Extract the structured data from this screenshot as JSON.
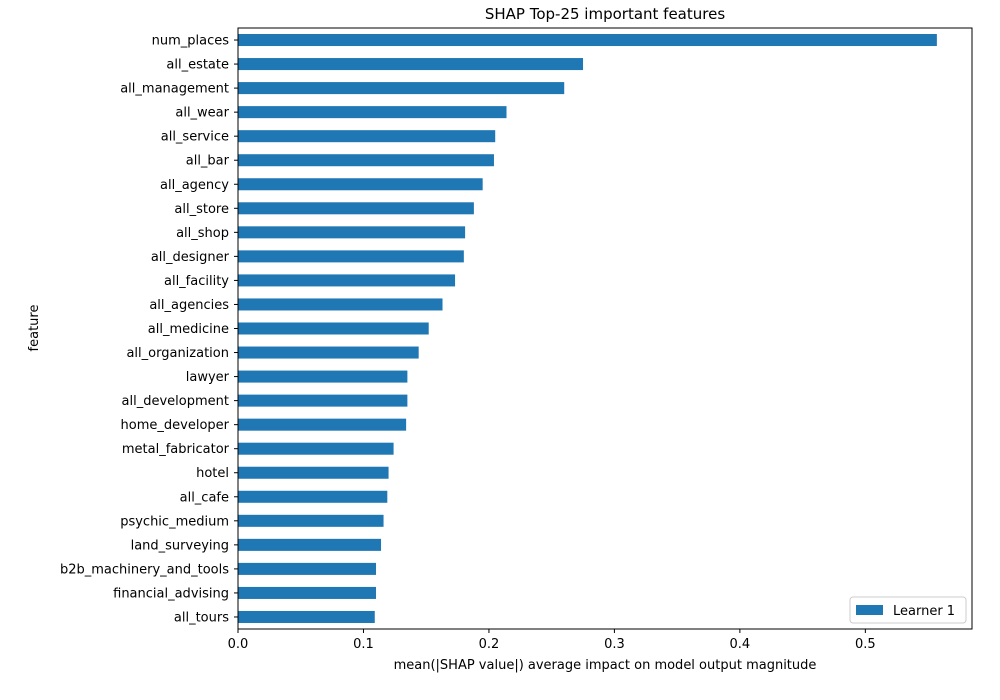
{
  "chart_data": {
    "type": "bar",
    "orientation": "horizontal",
    "title": "SHAP Top-25 important features",
    "xlabel": "mean(|SHAP value|) average impact on model output magnitude",
    "ylabel": "feature",
    "xlim": [
      0,
      0.585
    ],
    "xticks": [
      0.0,
      0.1,
      0.2,
      0.3,
      0.4,
      0.5
    ],
    "xtick_labels": [
      "0.0",
      "0.1",
      "0.2",
      "0.3",
      "0.4",
      "0.5"
    ],
    "grid": false,
    "legend_position": "bottom-right",
    "bar_color": "#1f77b4",
    "categories": [
      "num_places",
      "all_estate",
      "all_management",
      "all_wear",
      "all_service",
      "all_bar",
      "all_agency",
      "all_store",
      "all_shop",
      "all_designer",
      "all_facility",
      "all_agencies",
      "all_medicine",
      "all_organization",
      "lawyer",
      "all_development",
      "home_developer",
      "metal_fabricator",
      "hotel",
      "all_cafe",
      "psychic_medium",
      "land_surveying",
      "b2b_machinery_and_tools",
      "financial_advising",
      "all_tours"
    ],
    "series": [
      {
        "name": "Learner 1",
        "values": [
          0.557,
          0.275,
          0.26,
          0.214,
          0.205,
          0.204,
          0.195,
          0.188,
          0.181,
          0.18,
          0.173,
          0.163,
          0.152,
          0.144,
          0.135,
          0.135,
          0.134,
          0.124,
          0.12,
          0.119,
          0.116,
          0.114,
          0.11,
          0.11,
          0.109
        ]
      }
    ]
  }
}
